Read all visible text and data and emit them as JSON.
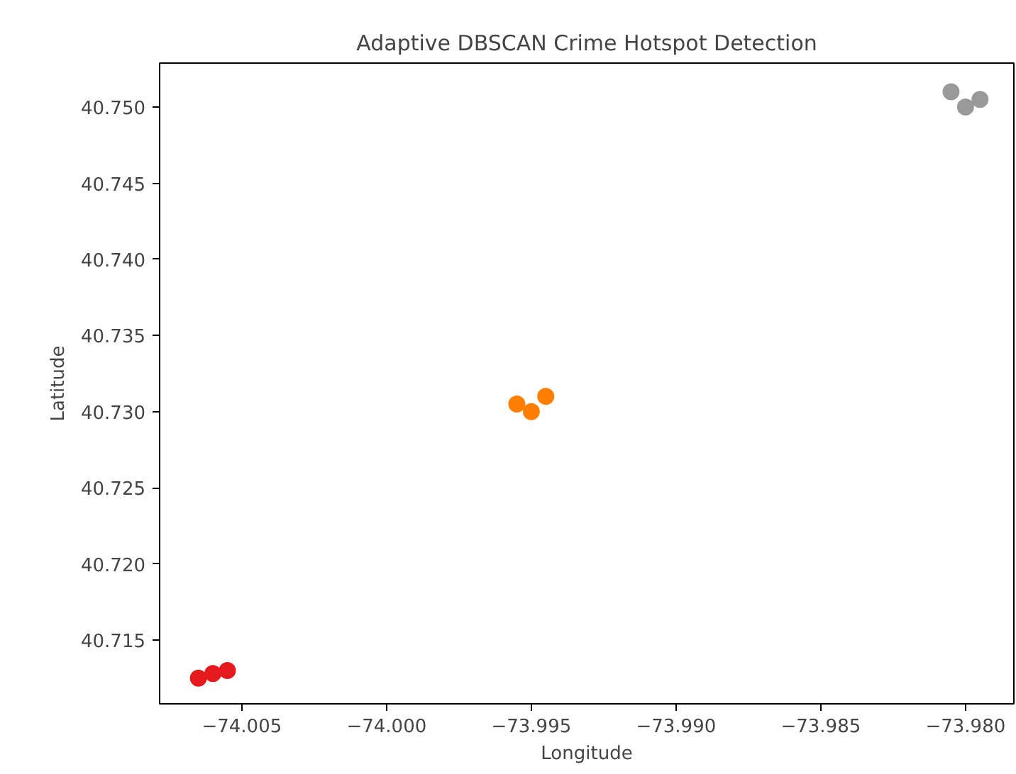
{
  "chart_data": {
    "type": "scatter",
    "title": "Adaptive DBSCAN Crime Hotspot Detection",
    "xlabel": "Longitude",
    "ylabel": "Latitude",
    "marker": "circle",
    "grid": false,
    "series": [
      {
        "color": "#e41a1c",
        "x": [
          -74.0065,
          -74.006,
          -74.0055
        ],
        "values": [
          40.7125,
          40.7128,
          40.713
        ]
      },
      {
        "color": "#ff7f00",
        "x": [
          -73.9955,
          -73.995,
          -73.9945
        ],
        "values": [
          40.7305,
          40.73,
          40.731
        ]
      },
      {
        "color": "#999999",
        "x": [
          -73.9805,
          -73.98,
          -73.9795
        ],
        "values": [
          40.751,
          40.75,
          40.7505
        ]
      }
    ],
    "xlim": [
      -74.00784,
      -73.97833
    ],
    "ylim": [
      40.71081,
      40.75289
    ],
    "xticks": [
      {
        "value": -74.005,
        "label": "−74.005"
      },
      {
        "value": -74.0,
        "label": "−74.000"
      },
      {
        "value": -73.995,
        "label": "−73.995"
      },
      {
        "value": -73.99,
        "label": "−73.990"
      },
      {
        "value": -73.985,
        "label": "−73.985"
      },
      {
        "value": -73.98,
        "label": "−73.980"
      }
    ],
    "yticks": [
      {
        "value": 40.715,
        "label": "40.715"
      },
      {
        "value": 40.72,
        "label": "40.720"
      },
      {
        "value": 40.725,
        "label": "40.725"
      },
      {
        "value": 40.73,
        "label": "40.730"
      },
      {
        "value": 40.735,
        "label": "40.735"
      },
      {
        "value": 40.74,
        "label": "40.740"
      },
      {
        "value": 40.745,
        "label": "40.745"
      },
      {
        "value": 40.75,
        "label": "40.750"
      }
    ]
  }
}
